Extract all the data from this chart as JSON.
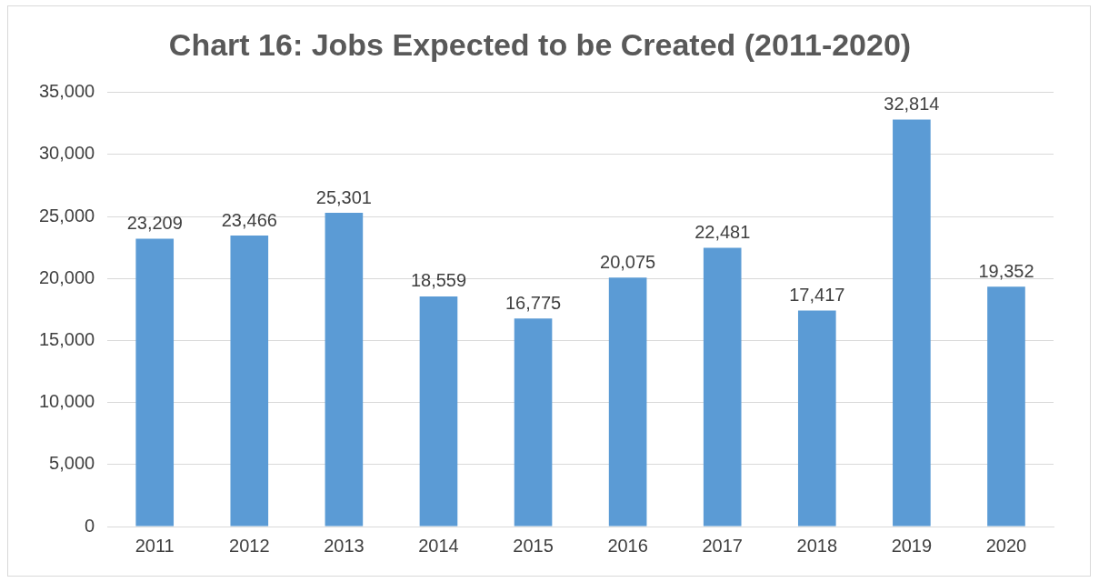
{
  "chart_data": {
    "type": "bar",
    "title": "Chart 16: Jobs Expected to be Created (2011-2020)",
    "categories": [
      "2011",
      "2012",
      "2013",
      "2014",
      "2015",
      "2016",
      "2017",
      "2018",
      "2019",
      "2020"
    ],
    "values": [
      23209,
      23466,
      25301,
      18559,
      16775,
      20075,
      22481,
      17417,
      32814,
      19352
    ],
    "value_labels": [
      "23,209",
      "23,466",
      "25,301",
      "18,559",
      "16,775",
      "20,075",
      "22,481",
      "17,417",
      "32,814",
      "19,352"
    ],
    "color": "#5b9bd5",
    "ylim": [
      0,
      35000
    ],
    "yticks": [
      0,
      {
        "value": 5000,
        "label": "5,000"
      },
      {
        "value": 10000,
        "label": "10,000"
      },
      {
        "value": 15000,
        "label": "15,000"
      },
      {
        "value": 20000,
        "label": "20,000"
      },
      {
        "value": 25000,
        "label": "25,000"
      },
      {
        "value": 30000,
        "label": "30,000"
      },
      {
        "value": 35000,
        "label": "35,000"
      }
    ],
    "grid": "y"
  }
}
